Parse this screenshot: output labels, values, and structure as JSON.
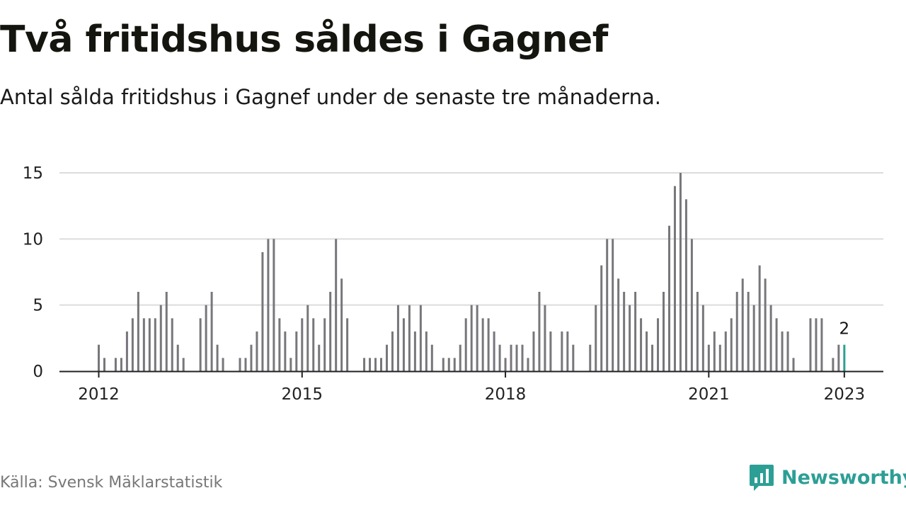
{
  "header": {
    "title": "Två fritidshus såldes i Gagnef",
    "subtitle": "Antal sålda fritidshus i Gagnef under de senaste tre månaderna."
  },
  "footer": {
    "source": "Källa: Svensk Mäklarstatistik",
    "brand": "Newsworthy",
    "brand_icon": "newsworthy-logo-icon"
  },
  "colors": {
    "bar": "#77767b",
    "highlight": "#2c9f95",
    "grid": "#dcdcdc",
    "axis": "#222222"
  },
  "chart_data": {
    "type": "bar",
    "x_start": "2012-01",
    "x_end": "2023-01",
    "x_ticks": [
      "2012",
      "2015",
      "2018",
      "2021",
      "2023"
    ],
    "y_ticks": [
      0,
      5,
      10,
      15
    ],
    "ylim": [
      0,
      15
    ],
    "grid": true,
    "highlight": {
      "x": "2023-01",
      "value": 2,
      "label": "2"
    },
    "series": [
      {
        "values": [
          2,
          1,
          0,
          1,
          1,
          3,
          4,
          6,
          4,
          4,
          4,
          5,
          6,
          4,
          2,
          1,
          0,
          0,
          4,
          5,
          6,
          2,
          1,
          0,
          0,
          1,
          1,
          2,
          3,
          9,
          10,
          10,
          4,
          3,
          1,
          3,
          4,
          5,
          4,
          2,
          4,
          6,
          10,
          7,
          4,
          0,
          0,
          1,
          1,
          1,
          1,
          2,
          3,
          5,
          4,
          5,
          3,
          5,
          3,
          2,
          0,
          1,
          1,
          1,
          2,
          4,
          5,
          5,
          4,
          4,
          3,
          2,
          1,
          2,
          2,
          2,
          1,
          3,
          6,
          5,
          3,
          0,
          3,
          3,
          2,
          0,
          0,
          2,
          5,
          8,
          10,
          10,
          7,
          6,
          5,
          6,
          4,
          3,
          2,
          4,
          6,
          11,
          14,
          15,
          13,
          10,
          6,
          5,
          2,
          3,
          2,
          3,
          4,
          6,
          7,
          6,
          5,
          8,
          7,
          5,
          4,
          3,
          3,
          1,
          0,
          0,
          4,
          4,
          4,
          0,
          1,
          2,
          2
        ]
      }
    ]
  }
}
